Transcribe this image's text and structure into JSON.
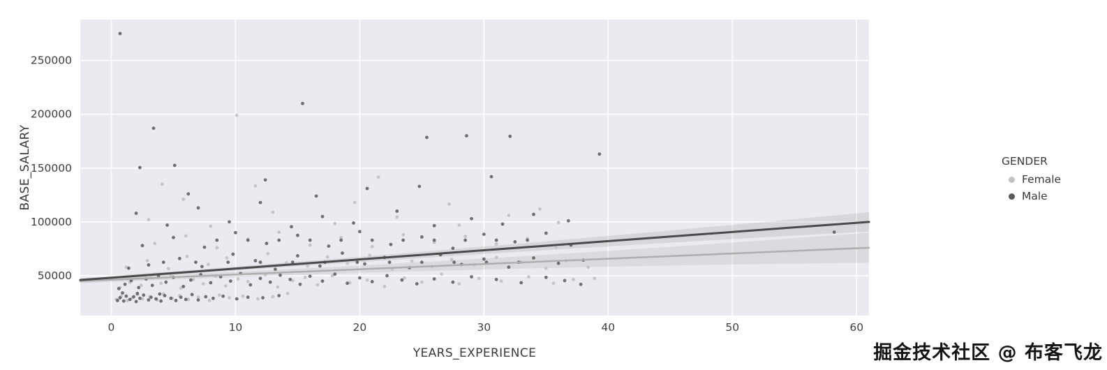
{
  "figure": {
    "plot_bg": "#eaeaf0",
    "grid_color": "#ffffff"
  },
  "watermark": "掘金技术社区 @ 布客飞龙",
  "chart_data": {
    "type": "scatter",
    "title": "",
    "xlabel": "YEARS_EXPERIENCE",
    "ylabel": "BASE_SALARY",
    "xlim": [
      -2.5,
      61
    ],
    "ylim": [
      13000,
      288000
    ],
    "xticks": [
      0,
      10,
      20,
      30,
      40,
      50,
      60
    ],
    "yticks": [
      50000,
      100000,
      150000,
      200000,
      250000
    ],
    "grid": true,
    "legend": {
      "title": "GENDER",
      "position": "right",
      "entries": [
        {
          "label": "Female",
          "color": "#c3c3c3"
        },
        {
          "label": "Male",
          "color": "#595959"
        }
      ]
    },
    "series": [
      {
        "name": "Female",
        "color": "#c3c3c3",
        "marker_opacity": 0.95,
        "points": [
          [
            0.4,
            28000
          ],
          [
            0.8,
            31000
          ],
          [
            1.3,
            27000
          ],
          [
            1.7,
            29500
          ],
          [
            2.1,
            32500
          ],
          [
            2.5,
            28500
          ],
          [
            3.1,
            30500
          ],
          [
            3.7,
            27500
          ],
          [
            4.2,
            33000
          ],
          [
            4.9,
            29000
          ],
          [
            5.5,
            31500
          ],
          [
            6.2,
            28000
          ],
          [
            7,
            30000
          ],
          [
            7.9,
            27000
          ],
          [
            8.7,
            32000
          ],
          [
            9.5,
            29500
          ],
          [
            10.6,
            31000
          ],
          [
            11.8,
            28500
          ],
          [
            13,
            30500
          ],
          [
            14.2,
            33500
          ],
          [
            0.7,
            39000
          ],
          [
            1.5,
            44000
          ],
          [
            2.4,
            41000
          ],
          [
            3.2,
            48000
          ],
          [
            4,
            43000
          ],
          [
            4.8,
            50500
          ],
          [
            5.6,
            38500
          ],
          [
            6.6,
            46500
          ],
          [
            7.4,
            42500
          ],
          [
            8.4,
            49500
          ],
          [
            9.2,
            40500
          ],
          [
            10.2,
            47000
          ],
          [
            11,
            44500
          ],
          [
            12.4,
            51000
          ],
          [
            13.4,
            39500
          ],
          [
            14.6,
            45500
          ],
          [
            15.6,
            48500
          ],
          [
            16.6,
            41500
          ],
          [
            17.8,
            50000
          ],
          [
            19.2,
            43500
          ],
          [
            20.6,
            46000
          ],
          [
            22,
            40000
          ],
          [
            23.6,
            48000
          ],
          [
            25,
            44000
          ],
          [
            26.6,
            51500
          ],
          [
            28,
            42500
          ],
          [
            29.6,
            47500
          ],
          [
            31.4,
            45000
          ],
          [
            33.6,
            49000
          ],
          [
            35.6,
            43000
          ],
          [
            37.2,
            46500
          ],
          [
            1.2,
            58000
          ],
          [
            2.9,
            64000
          ],
          [
            4.6,
            56500
          ],
          [
            6.1,
            68000
          ],
          [
            7.8,
            60500
          ],
          [
            9.3,
            66500
          ],
          [
            10.9,
            57500
          ],
          [
            12.6,
            70500
          ],
          [
            14.1,
            62000
          ],
          [
            15.8,
            59000
          ],
          [
            17.4,
            67500
          ],
          [
            19,
            61500
          ],
          [
            20.8,
            69000
          ],
          [
            22.6,
            56000
          ],
          [
            24.2,
            63500
          ],
          [
            25.8,
            58500
          ],
          [
            27.4,
            65000
          ],
          [
            29.2,
            60000
          ],
          [
            31,
            67000
          ],
          [
            33,
            62500
          ],
          [
            35,
            57000
          ],
          [
            36.6,
            64000
          ],
          [
            3.5,
            80000
          ],
          [
            6,
            87000
          ],
          [
            8.5,
            76000
          ],
          [
            11,
            84000
          ],
          [
            13.5,
            90500
          ],
          [
            16,
            78500
          ],
          [
            18.5,
            85500
          ],
          [
            21,
            77000
          ],
          [
            23.5,
            88000
          ],
          [
            26,
            81000
          ],
          [
            28.5,
            86500
          ],
          [
            31,
            79500
          ],
          [
            33.5,
            84500
          ],
          [
            35.8,
            76500
          ],
          [
            3,
            102000
          ],
          [
            8,
            96000
          ],
          [
            13,
            109000
          ],
          [
            18,
            98500
          ],
          [
            23,
            104500
          ],
          [
            28,
            97000
          ],
          [
            32,
            106000
          ],
          [
            36,
            99500
          ],
          [
            10.1,
            199000
          ],
          [
            11.6,
            133500
          ],
          [
            4.1,
            135000
          ],
          [
            5.8,
            121000
          ],
          [
            19.6,
            118000
          ],
          [
            27.2,
            116500
          ],
          [
            34.5,
            112000
          ],
          [
            21.5,
            141500
          ],
          [
            38.4,
            58000
          ],
          [
            38.9,
            47500
          ]
        ]
      },
      {
        "name": "Male",
        "color": "#595959",
        "marker_opacity": 0.85,
        "points": [
          [
            0.5,
            27000
          ],
          [
            0.7,
            29500
          ],
          [
            1,
            26500
          ],
          [
            1.2,
            31000
          ],
          [
            1.5,
            28000
          ],
          [
            1.8,
            30500
          ],
          [
            2,
            26000
          ],
          [
            2.3,
            29000
          ],
          [
            2.6,
            32000
          ],
          [
            3,
            27500
          ],
          [
            3.2,
            30000
          ],
          [
            3.6,
            28500
          ],
          [
            4,
            26500
          ],
          [
            4.3,
            31500
          ],
          [
            4.8,
            29000
          ],
          [
            5.2,
            27000
          ],
          [
            5.6,
            30000
          ],
          [
            6,
            28000
          ],
          [
            6.5,
            32500
          ],
          [
            7,
            27500
          ],
          [
            7.6,
            30500
          ],
          [
            8.2,
            29000
          ],
          [
            9,
            31000
          ],
          [
            10.1,
            28500
          ],
          [
            11,
            30000
          ],
          [
            12.2,
            29500
          ],
          [
            13.5,
            31500
          ],
          [
            2.1,
            33500
          ],
          [
            0.9,
            34000
          ],
          [
            3.9,
            33000
          ],
          [
            0.6,
            38000
          ],
          [
            1.1,
            42000
          ],
          [
            1.6,
            45500
          ],
          [
            2.2,
            39000
          ],
          [
            2.8,
            47000
          ],
          [
            3.3,
            41000
          ],
          [
            3.8,
            50000
          ],
          [
            4.4,
            44000
          ],
          [
            5,
            48500
          ],
          [
            5.8,
            40000
          ],
          [
            6.4,
            46000
          ],
          [
            7.2,
            51000
          ],
          [
            8,
            43500
          ],
          [
            8.8,
            49000
          ],
          [
            9.6,
            45000
          ],
          [
            10.4,
            52000
          ],
          [
            11.2,
            41500
          ],
          [
            12,
            47500
          ],
          [
            12.8,
            44000
          ],
          [
            13.6,
            50500
          ],
          [
            14.4,
            46500
          ],
          [
            15.2,
            42000
          ],
          [
            16,
            49500
          ],
          [
            17,
            45000
          ],
          [
            18,
            51500
          ],
          [
            19,
            43000
          ],
          [
            20,
            48000
          ],
          [
            21,
            44500
          ],
          [
            22.2,
            50000
          ],
          [
            23.4,
            46000
          ],
          [
            24.6,
            42500
          ],
          [
            26,
            47000
          ],
          [
            27.5,
            44000
          ],
          [
            29,
            49000
          ],
          [
            31,
            46500
          ],
          [
            33,
            43500
          ],
          [
            35,
            48500
          ],
          [
            36.5,
            45500
          ],
          [
            37.8,
            42000
          ],
          [
            4.2,
            62500
          ],
          [
            6.8,
            62500
          ],
          [
            9.4,
            62500
          ],
          [
            12,
            62500
          ],
          [
            14.6,
            62500
          ],
          [
            17.2,
            62500
          ],
          [
            19.8,
            62500
          ],
          [
            22.4,
            62500
          ],
          [
            25,
            62500
          ],
          [
            27.6,
            62500
          ],
          [
            30.2,
            62500
          ],
          [
            32.8,
            62500
          ],
          [
            1.4,
            57000
          ],
          [
            3,
            60000
          ],
          [
            5.5,
            66000
          ],
          [
            7.3,
            58500
          ],
          [
            9.8,
            70000
          ],
          [
            11.6,
            64000
          ],
          [
            13.2,
            56000
          ],
          [
            15,
            68500
          ],
          [
            16.8,
            59000
          ],
          [
            18.6,
            71000
          ],
          [
            20.4,
            61000
          ],
          [
            22,
            67000
          ],
          [
            24,
            57500
          ],
          [
            26.5,
            69500
          ],
          [
            28.2,
            60500
          ],
          [
            30,
            65500
          ],
          [
            32,
            58000
          ],
          [
            34,
            66500
          ],
          [
            36,
            61500
          ],
          [
            38,
            64500
          ],
          [
            8.5,
            83000
          ],
          [
            11,
            83000
          ],
          [
            13.5,
            83000
          ],
          [
            16,
            83000
          ],
          [
            18.5,
            83000
          ],
          [
            21,
            83000
          ],
          [
            23.5,
            83000
          ],
          [
            26,
            83000
          ],
          [
            28.5,
            83000
          ],
          [
            31,
            83000
          ],
          [
            33.5,
            83000
          ],
          [
            2.5,
            78000
          ],
          [
            5,
            85500
          ],
          [
            7.5,
            76500
          ],
          [
            10,
            90000
          ],
          [
            12.5,
            80000
          ],
          [
            15,
            87500
          ],
          [
            17.5,
            77500
          ],
          [
            20,
            91000
          ],
          [
            22.5,
            79000
          ],
          [
            25,
            86000
          ],
          [
            27.5,
            75500
          ],
          [
            30,
            88500
          ],
          [
            32.5,
            81500
          ],
          [
            35,
            89500
          ],
          [
            37,
            78500
          ],
          [
            2,
            108000
          ],
          [
            4.5,
            97000
          ],
          [
            7,
            113000
          ],
          [
            9.5,
            100000
          ],
          [
            12,
            118000
          ],
          [
            14.5,
            95500
          ],
          [
            17,
            105000
          ],
          [
            19.5,
            99000
          ],
          [
            23,
            110000
          ],
          [
            26,
            96500
          ],
          [
            29,
            103000
          ],
          [
            31.5,
            98000
          ],
          [
            34,
            107000
          ],
          [
            36.8,
            101000
          ],
          [
            0.7,
            275000
          ],
          [
            3.4,
            187000
          ],
          [
            15.4,
            210000
          ],
          [
            28.6,
            180000
          ],
          [
            25.4,
            178500
          ],
          [
            32.1,
            179500
          ],
          [
            39.3,
            163000
          ],
          [
            30.6,
            142000
          ],
          [
            5.1,
            152500
          ],
          [
            2.3,
            150500
          ],
          [
            12.4,
            139000
          ],
          [
            20.6,
            131000
          ],
          [
            6.2,
            126000
          ],
          [
            16.5,
            124000
          ],
          [
            24.8,
            133000
          ],
          [
            58.2,
            90500
          ]
        ]
      }
    ],
    "regressions": [
      {
        "name": "Female",
        "color": "#aeaeae",
        "width": 2.5,
        "x0": -2.5,
        "y0": 45000,
        "x1": 61,
        "y1": 76000,
        "band_half_start": 2000,
        "band_half_end": 14000,
        "band_color": "rgba(150,150,150,0.18)"
      },
      {
        "name": "Male",
        "color": "#4a4a4a",
        "width": 3,
        "x0": -2.5,
        "y0": 46000,
        "x1": 61,
        "y1": 100000,
        "band_half_start": 1500,
        "band_half_end": 9000,
        "band_color": "rgba(110,110,110,0.16)"
      }
    ]
  }
}
